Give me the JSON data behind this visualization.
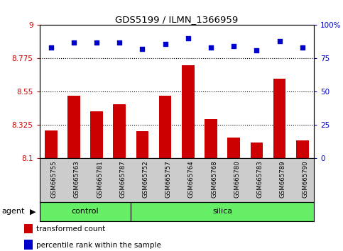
{
  "title": "GDS5199 / ILMN_1366959",
  "categories": [
    "GSM665755",
    "GSM665763",
    "GSM665781",
    "GSM665787",
    "GSM665752",
    "GSM665757",
    "GSM665764",
    "GSM665768",
    "GSM665780",
    "GSM665783",
    "GSM665789",
    "GSM665790"
  ],
  "bar_values": [
    8.285,
    8.52,
    8.415,
    8.465,
    8.28,
    8.52,
    8.73,
    8.365,
    8.24,
    8.205,
    8.635,
    8.22
  ],
  "dot_values": [
    83,
    87,
    87,
    87,
    82,
    86,
    90,
    83,
    84,
    81,
    88,
    83
  ],
  "ylim_left": [
    8.1,
    9.0
  ],
  "ylim_right": [
    0,
    100
  ],
  "yticks_left": [
    8.1,
    8.325,
    8.55,
    8.775,
    9.0
  ],
  "yticks_right": [
    0,
    25,
    50,
    75,
    100
  ],
  "ytick_labels_left": [
    "8.1",
    "8.325",
    "8.55",
    "8.775",
    "9"
  ],
  "ytick_labels_right": [
    "0",
    "25",
    "50",
    "75",
    "100%"
  ],
  "hlines": [
    8.325,
    8.55,
    8.775
  ],
  "bar_color": "#cc0000",
  "dot_color": "#0000cc",
  "bar_bottom": 8.1,
  "n_control": 4,
  "n_silica": 8,
  "control_label": "control",
  "silica_label": "silica",
  "agent_label": "agent",
  "legend_bar_label": "transformed count",
  "legend_dot_label": "percentile rank within the sample",
  "group_color": "#66ee66",
  "label_area_color": "#cccccc",
  "figsize": [
    4.83,
    3.54
  ],
  "dpi": 100
}
